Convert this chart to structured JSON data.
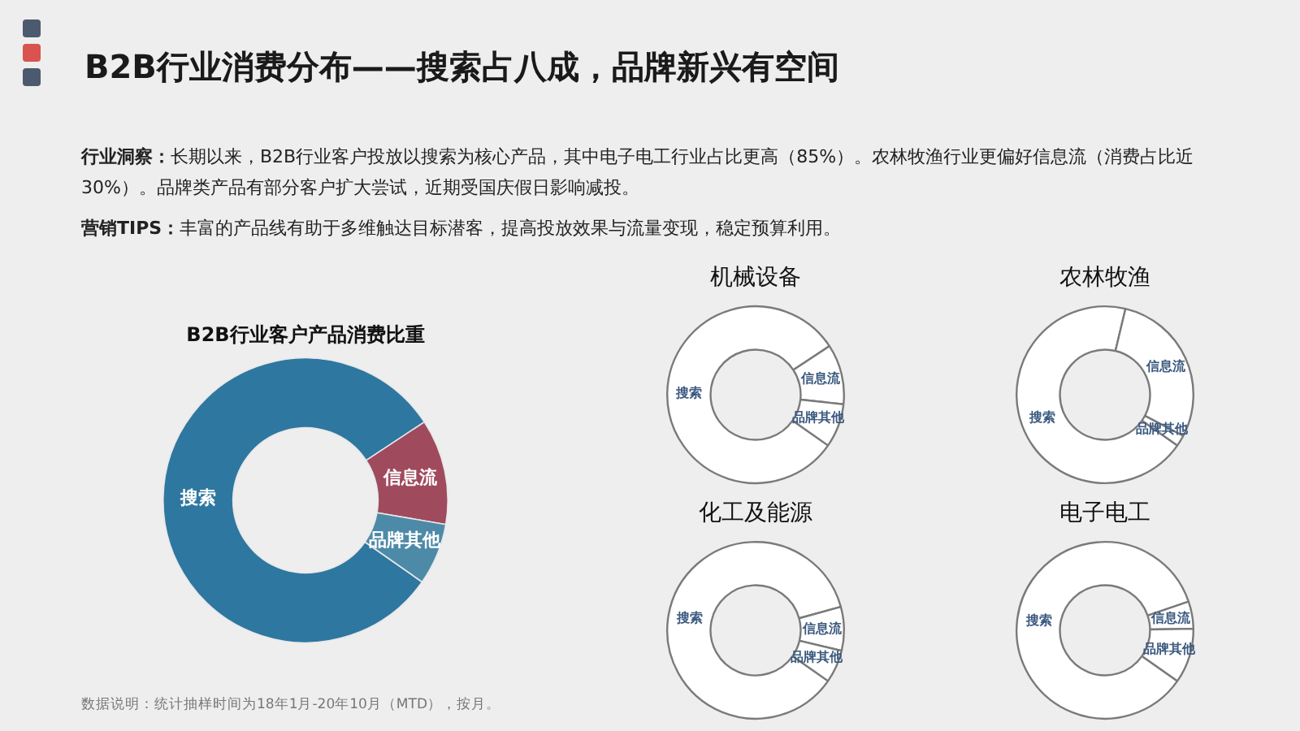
{
  "chart_data": [
    {
      "type": "other",
      "title": "B2B行业消费分布——搜索占八成，品牌新兴有空间",
      "annotations": [
        "行业洞察：长期以来，B2B行业客户投放以搜索为核心产品，其中电子电工行业占比更高（85%）。农林牧渔行业更偏好信息流（消费占比近30%）。品牌类产品有部分客户扩大尝试，近期受国庆假日影响减投。",
        "营销TIPS：丰富的产品线有助于多维触达目标潜客，提高投放效果与流量变现，稳定预算利用。",
        "数据说明：统计抽样时间为18年1月-20年10月（MTD），按月。"
      ]
    },
    {
      "type": "donut",
      "title": "B2B行业客户产品消费比重",
      "categories": [
        "搜索",
        "信息流",
        "品牌其他"
      ],
      "values": [
        81,
        12,
        7
      ],
      "colors": [
        "#2e77a0",
        "#a04a5e",
        "#4d8aa8"
      ]
    },
    {
      "type": "donut",
      "title": "机械设备",
      "categories": [
        "搜索",
        "信息流",
        "品牌其他"
      ],
      "values": [
        81,
        11,
        8
      ],
      "colors": [
        "#ffffff",
        "#ffffff",
        "#ffffff"
      ]
    },
    {
      "type": "donut",
      "title": "农林牧渔",
      "categories": [
        "搜索",
        "信息流",
        "品牌其他"
      ],
      "values": [
        69,
        29,
        2
      ],
      "colors": [
        "#ffffff",
        "#ffffff",
        "#ffffff"
      ]
    },
    {
      "type": "donut",
      "title": "化工及能源",
      "categories": [
        "搜索",
        "信息流",
        "品牌其他"
      ],
      "values": [
        86,
        8,
        6
      ],
      "colors": [
        "#ffffff",
        "#ffffff",
        "#ffffff"
      ]
    },
    {
      "type": "donut",
      "title": "电子电工",
      "categories": [
        "搜索",
        "信息流",
        "品牌其他"
      ],
      "values": [
        85,
        5,
        10
      ],
      "colors": [
        "#ffffff",
        "#ffffff",
        "#ffffff"
      ]
    }
  ]
}
